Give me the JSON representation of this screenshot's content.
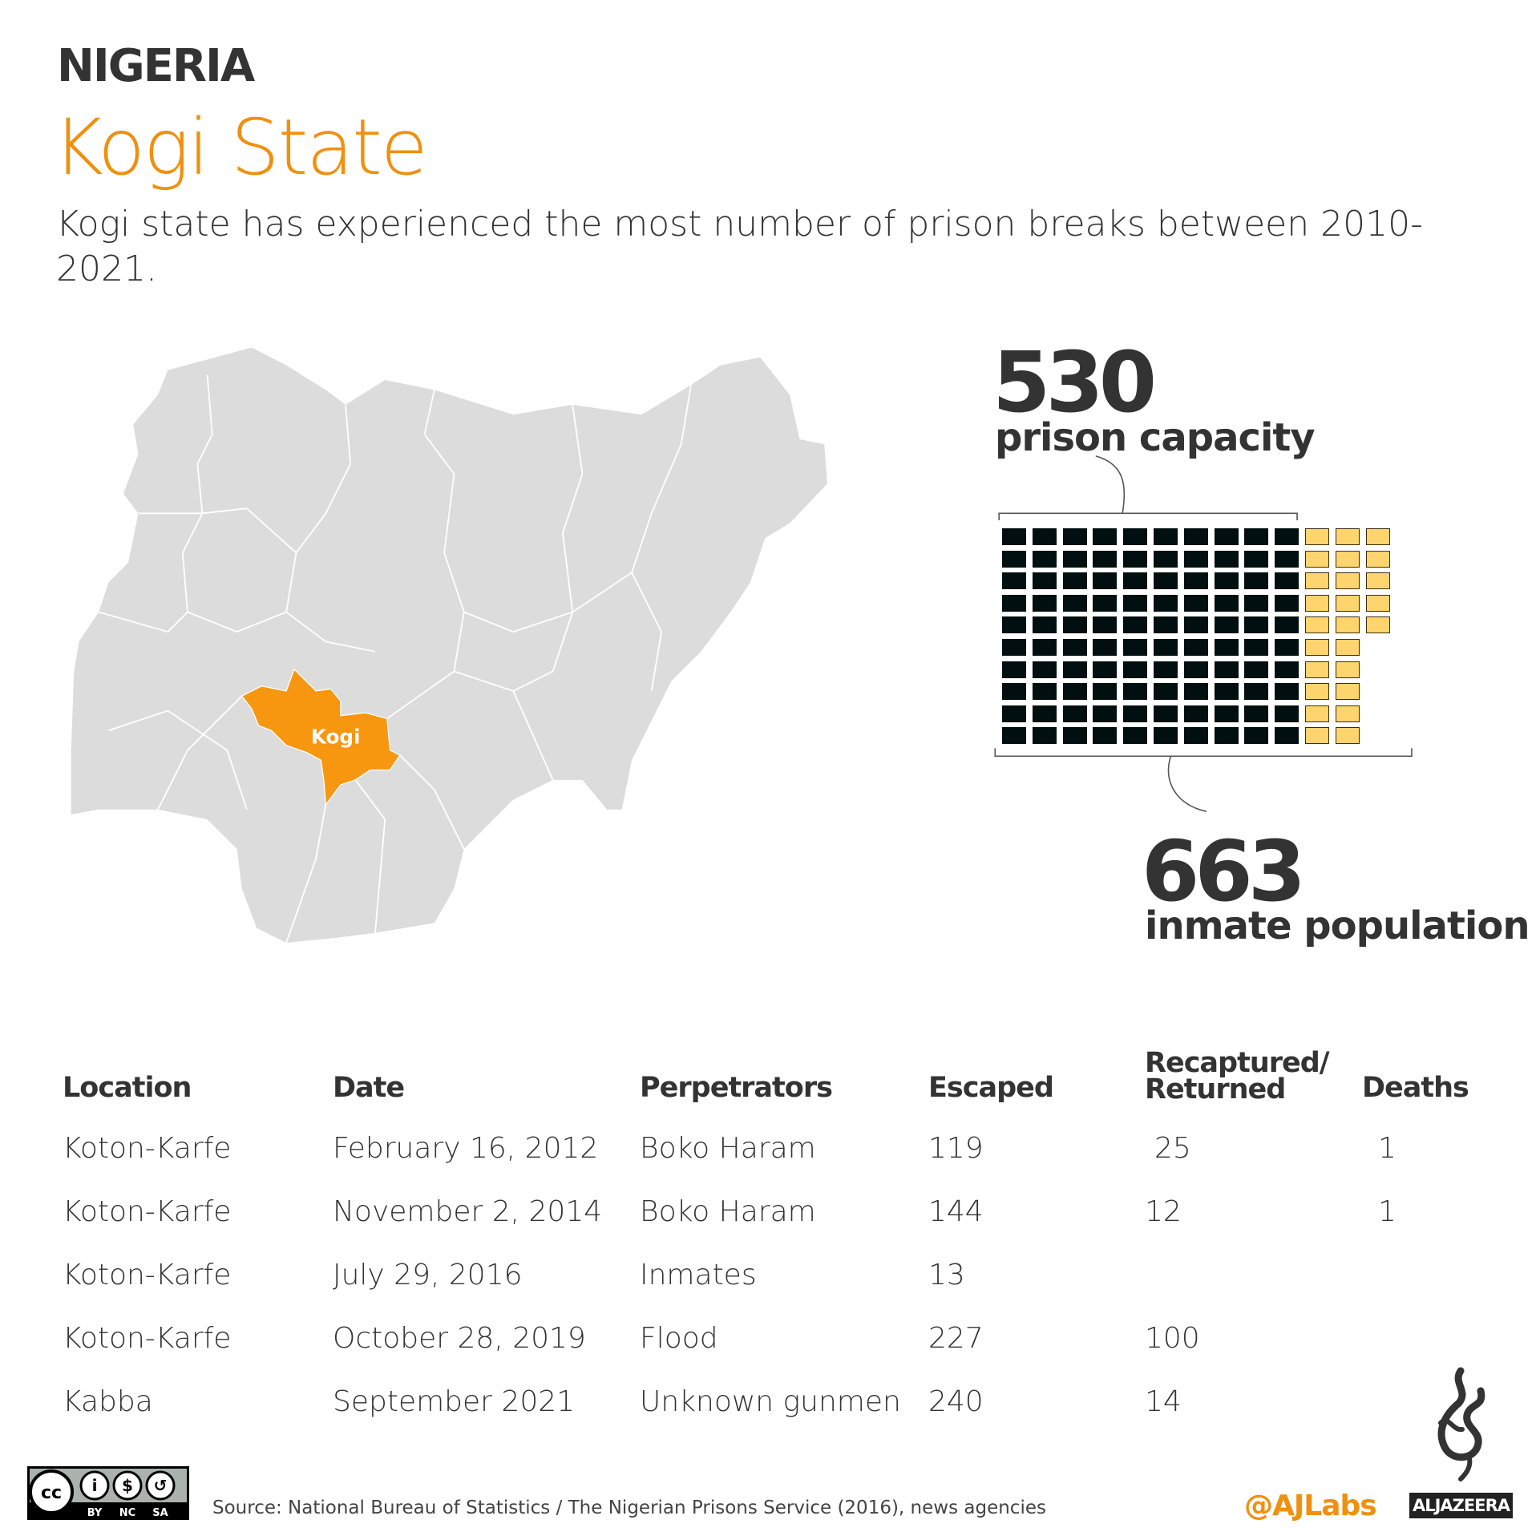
{
  "header": {
    "country": "NIGERIA",
    "state": "Kogi State",
    "subtitle": "Kogi state has experienced the most number of prison breaks between 2010-2021."
  },
  "map": {
    "highlight_label": "Kogi",
    "base_color": "#dcdcdc",
    "highlight_color": "#f7960f"
  },
  "chart_data": {
    "type": "waffle",
    "capacity": {
      "value": "530",
      "label": "prison capacity"
    },
    "population": {
      "value": "663",
      "label": "inmate population"
    },
    "rows": 10,
    "capacity_squares": 100,
    "overflow_squares": 25,
    "overflow_columns": [
      5,
      5,
      5,
      5,
      5,
      10,
      10,
      10,
      10,
      10
    ],
    "capacity_color": "#020f10",
    "overflow_color": "#fdd46e"
  },
  "table": {
    "headers": [
      "Location",
      "Date",
      "Perpetrators",
      "Escaped",
      "Recaptured/\nReturned",
      "Deaths"
    ],
    "rows": [
      [
        "Koton-Karfe",
        "February 16, 2012",
        "Boko Haram",
        "119",
        "25",
        "1"
      ],
      [
        "Koton-Karfe",
        "November 2, 2014",
        "Boko Haram",
        "144",
        "12",
        "1"
      ],
      [
        "Koton-Karfe",
        "July 29, 2016",
        "Inmates",
        "13",
        "",
        ""
      ],
      [
        "Koton-Karfe",
        "October 28, 2019",
        "Flood",
        "227",
        "100",
        ""
      ],
      [
        "Kabba",
        "September 2021",
        "Unknown gunmen",
        "240",
        "14",
        ""
      ]
    ]
  },
  "footer": {
    "source": "Source: National Bureau of Statistics / The Nigerian Prisons Service (2016), news agencies",
    "license": [
      "BY",
      "NC",
      "SA"
    ],
    "handle": "@AJLabs",
    "brand": "ALJAZEERA",
    "accent": "#f0900f"
  }
}
